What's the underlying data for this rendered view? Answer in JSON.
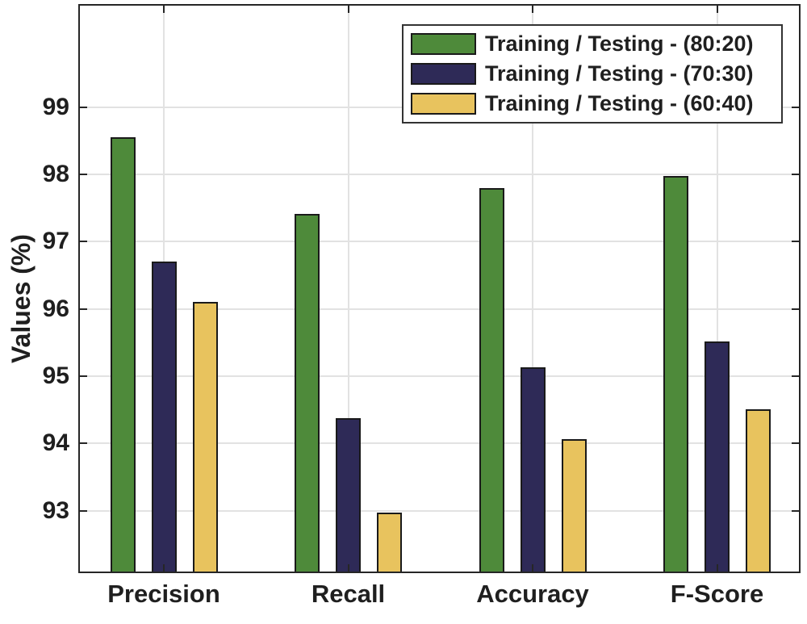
{
  "chart_data": {
    "type": "bar",
    "title": "",
    "xlabel": "",
    "ylabel": "Values (%)",
    "categories": [
      "Precision",
      "Recall",
      "Accuracy",
      "F-Score"
    ],
    "series": [
      {
        "name": "Training / Testing - (80:20)",
        "color": "#4e8a3a",
        "values": [
          98.55,
          97.41,
          97.79,
          97.98
        ]
      },
      {
        "name": "Training / Testing - (70:30)",
        "color": "#2e2a57",
        "values": [
          96.7,
          94.37,
          95.13,
          95.51
        ]
      },
      {
        "name": "Training / Testing - (60:40)",
        "color": "#e8c35e",
        "values": [
          96.1,
          92.97,
          94.06,
          94.51
        ]
      }
    ],
    "yticks": [
      93,
      94,
      95,
      96,
      97,
      98,
      99
    ],
    "ylim": [
      92.07,
      100.53
    ],
    "grid": true,
    "legend_position": "top-right",
    "bar_edge_color": "#1a1a1a",
    "axis_color": "#262626",
    "grid_color": "#e2e2e2"
  }
}
